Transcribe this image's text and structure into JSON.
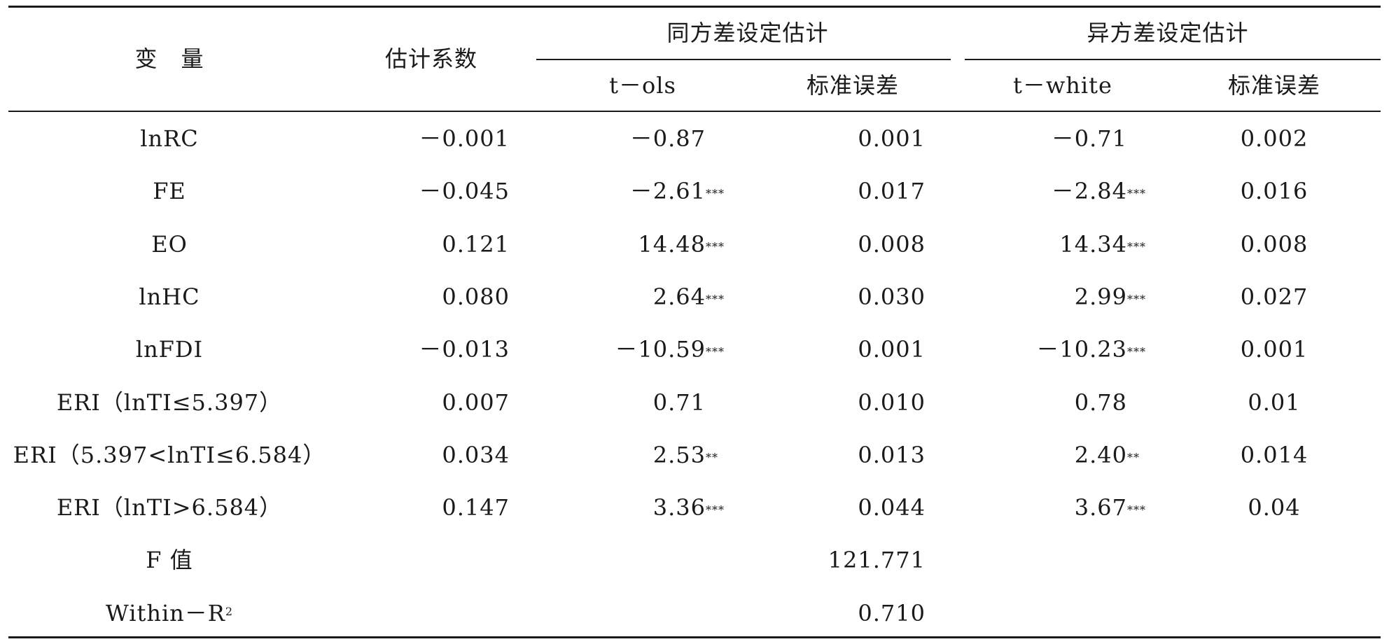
{
  "header": {
    "variable": "变　量",
    "coef": "估计系数",
    "homo_group": "同方差设定估计",
    "hetero_group": "异方差设定估计",
    "t_ols": "t－ols",
    "se_homo": "标准误差",
    "t_white": "t－white",
    "se_hetero": "标准误差"
  },
  "rows": [
    {
      "var": "lnRC",
      "coef": "－0.001",
      "t_ols": "－0.87",
      "t_ols_sig": "",
      "se1": "0.001",
      "t_white": "－0.71",
      "t_white_sig": "",
      "se2": "0.002"
    },
    {
      "var": "FE",
      "coef": "－0.045",
      "t_ols": "－2.61",
      "t_ols_sig": "***",
      "se1": "0.017",
      "t_white": "－2.84",
      "t_white_sig": "***",
      "se2": "0.016"
    },
    {
      "var": "EO",
      "coef": "0.121",
      "t_ols": "14.48",
      "t_ols_sig": "***",
      "se1": "0.008",
      "t_white": "14.34",
      "t_white_sig": "***",
      "se2": "0.008"
    },
    {
      "var": "lnHC",
      "coef": "0.080",
      "t_ols": "2.64",
      "t_ols_sig": "***",
      "se1": "0.030",
      "t_white": "2.99",
      "t_white_sig": "***",
      "se2": "0.027"
    },
    {
      "var": "lnFDI",
      "coef": "－0.013",
      "t_ols": "－10.59",
      "t_ols_sig": "***",
      "se1": "0.001",
      "t_white": "－10.23",
      "t_white_sig": "***",
      "se2": "0.001"
    },
    {
      "var": "ERI（lnTI≤5.397）",
      "coef": "0.007",
      "t_ols": "0.71",
      "t_ols_sig": "",
      "se1": "0.010",
      "t_white": "0.78",
      "t_white_sig": "",
      "se2": "0.01"
    },
    {
      "var": "ERI（5.397<lnTI≤6.584）",
      "coef": "0.034",
      "t_ols": "2.53",
      "t_ols_sig": "**",
      "se1": "0.013",
      "t_white": "2.40",
      "t_white_sig": "**",
      "se2": "0.014"
    },
    {
      "var": "ERI（lnTI>6.584）",
      "coef": "0.147",
      "t_ols": "3.36",
      "t_ols_sig": "***",
      "se1": "0.044",
      "t_white": "3.67",
      "t_white_sig": "***",
      "se2": "0.04"
    },
    {
      "var": "F 值",
      "coef": "",
      "t_ols": "",
      "t_ols_sig": "",
      "se1": "121.771",
      "t_white": "",
      "t_white_sig": "",
      "se2": ""
    },
    {
      "var": "Within－R",
      "var_sup": "2",
      "coef": "",
      "t_ols": "",
      "t_ols_sig": "",
      "se1": "0.710",
      "t_white": "",
      "t_white_sig": "",
      "se2": ""
    }
  ]
}
